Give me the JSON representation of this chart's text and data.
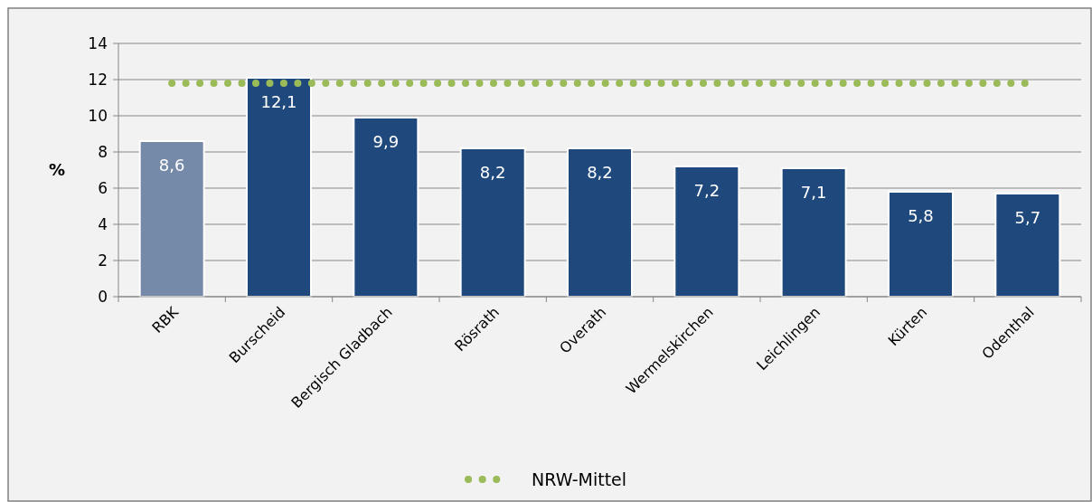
{
  "chart_data": {
    "type": "bar",
    "categories": [
      "RBK",
      "Burscheid",
      "Bergisch Gladbach",
      "Rösrath",
      "Overath",
      "Wermelskirchen",
      "Leichlingen",
      "Kürten",
      "Odenthal"
    ],
    "series": [
      {
        "colors": [
          "#7589a8",
          "#1f497d",
          "#1f497d",
          "#1f497d",
          "#1f497d",
          "#1f497d",
          "#1f497d",
          "#1f497d",
          "#1f497d"
        ],
        "values": [
          8.6,
          12.1,
          9.9,
          8.2,
          8.2,
          7.2,
          7.1,
          5.8,
          5.7
        ],
        "value_labels": [
          "8,6",
          "12,1",
          "9,9",
          "8,2",
          "8,2",
          "7,2",
          "7,1",
          "5,8",
          "5,7"
        ]
      },
      {
        "type": "line",
        "name": "NRW-Mittel",
        "color": "#9bbb59",
        "line_style": "dotted",
        "values": [
          11.8,
          11.8,
          11.8,
          11.8,
          11.8,
          11.8,
          11.8,
          11.8,
          11.8
        ]
      }
    ],
    "ylabel": "%",
    "ylim": [
      0,
      14
    ],
    "yticks": [
      0,
      2,
      4,
      6,
      8,
      10,
      12,
      14
    ],
    "grid": "y",
    "legend": "bottom"
  }
}
